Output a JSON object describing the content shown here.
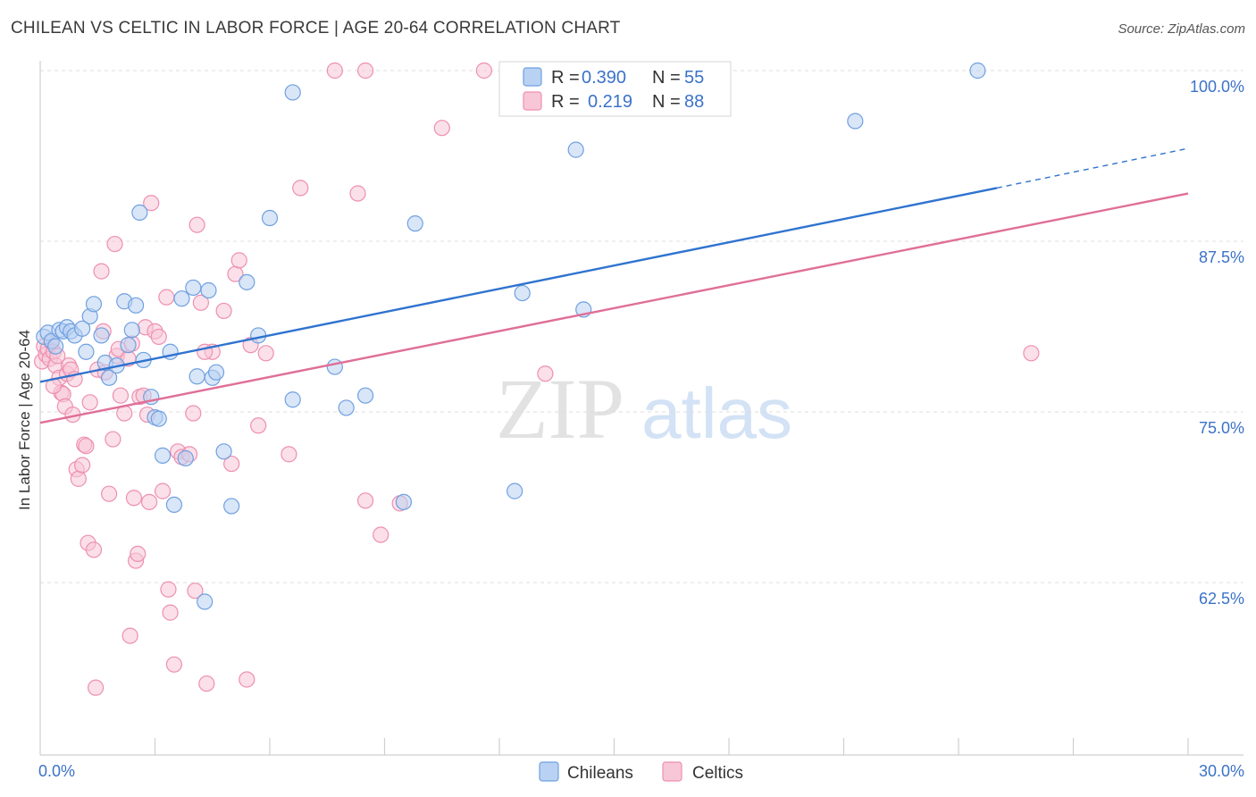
{
  "header": {
    "title": "CHILEAN VS CELTIC IN LABOR FORCE | AGE 20-64 CORRELATION CHART",
    "source": "Source: ZipAtlas.com"
  },
  "watermark": {
    "zip": "ZIP",
    "atlas": "atlas"
  },
  "colors": {
    "blue": "#6fa0e0",
    "blue_fill": "#b9d2f3",
    "blue_line": "#2f73cf",
    "pink": "#ee8fb0",
    "pink_fill": "#f7c7d7",
    "pink_line": "#e06f98",
    "tick": "#3b72c9"
  },
  "legend": {
    "r_label": "R =",
    "n_label": "N =",
    "rows": [
      {
        "r": "0.390",
        "n": "55"
      },
      {
        "r": "0.219",
        "n": "88"
      }
    ]
  },
  "chart_data": {
    "type": "scatter",
    "xlabel": "",
    "ylabel": "In Labor Force | Age 20-64",
    "xlim": [
      0,
      30
    ],
    "ylim": [
      51.5,
      101.5
    ],
    "x_tick_labels": [
      {
        "value": 0,
        "label": "0.0%"
      },
      {
        "value": 30,
        "label": "30.0%"
      }
    ],
    "y_tick_labels": [
      {
        "value": 100,
        "label": "100.0%"
      },
      {
        "value": 87.5,
        "label": "87.5%"
      },
      {
        "value": 75,
        "label": "75.0%"
      },
      {
        "value": 62.5,
        "label": "62.5%"
      }
    ],
    "x_minor_ticks": [
      3,
      6,
      9,
      12,
      15,
      18,
      21,
      24,
      27,
      30
    ],
    "series": [
      {
        "name": "Chileans",
        "r": 0.39,
        "n": 55,
        "trend": {
          "x0": 0,
          "y0": 77.2,
          "x1": 25,
          "y1": 91.4,
          "dash_to_x": 30,
          "dash_to_y": 94.3
        },
        "points": [
          [
            0.1,
            80.5
          ],
          [
            0.2,
            80.8
          ],
          [
            0.3,
            80.2
          ],
          [
            0.4,
            79.8
          ],
          [
            0.5,
            81.0
          ],
          [
            0.6,
            80.9
          ],
          [
            0.7,
            81.2
          ],
          [
            0.8,
            80.9
          ],
          [
            0.9,
            80.6
          ],
          [
            1.2,
            79.4
          ],
          [
            1.3,
            82.0
          ],
          [
            1.4,
            82.9
          ],
          [
            1.6,
            80.6
          ],
          [
            1.7,
            78.6
          ],
          [
            1.8,
            77.5
          ],
          [
            2.0,
            78.4
          ],
          [
            2.2,
            83.1
          ],
          [
            2.3,
            79.9
          ],
          [
            2.4,
            81.0
          ],
          [
            2.5,
            82.8
          ],
          [
            2.6,
            89.6
          ],
          [
            2.7,
            78.8
          ],
          [
            2.9,
            76.1
          ],
          [
            3.0,
            74.6
          ],
          [
            3.1,
            74.5
          ],
          [
            3.2,
            71.8
          ],
          [
            3.4,
            79.4
          ],
          [
            3.5,
            68.2
          ],
          [
            3.7,
            83.3
          ],
          [
            3.8,
            71.6
          ],
          [
            4.0,
            84.1
          ],
          [
            4.1,
            77.6
          ],
          [
            4.4,
            83.9
          ],
          [
            4.5,
            77.5
          ],
          [
            4.6,
            77.9
          ],
          [
            4.8,
            72.1
          ],
          [
            5.0,
            68.1
          ],
          [
            5.4,
            84.5
          ],
          [
            5.7,
            80.6
          ],
          [
            6.0,
            89.2
          ],
          [
            6.6,
            75.9
          ],
          [
            6.6,
            98.4
          ],
          [
            7.7,
            78.3
          ],
          [
            8.0,
            75.3
          ],
          [
            8.5,
            76.2
          ],
          [
            9.5,
            68.4
          ],
          [
            9.8,
            88.8
          ],
          [
            12.4,
            69.2
          ],
          [
            12.6,
            83.7
          ],
          [
            14.0,
            94.2
          ],
          [
            14.2,
            82.5
          ],
          [
            21.3,
            96.3
          ],
          [
            24.5,
            100.0
          ],
          [
            4.3,
            61.1
          ],
          [
            1.1,
            81.1
          ]
        ]
      },
      {
        "name": "Celtics",
        "r": 0.219,
        "n": 88,
        "trend": {
          "x0": 0,
          "y0": 74.2,
          "x1": 30,
          "y1": 91.0
        },
        "points": [
          [
            0.05,
            78.7
          ],
          [
            0.1,
            79.8
          ],
          [
            0.15,
            79.2
          ],
          [
            0.2,
            79.6
          ],
          [
            0.25,
            78.9
          ],
          [
            0.3,
            80.1
          ],
          [
            0.35,
            79.4
          ],
          [
            0.4,
            78.4
          ],
          [
            0.45,
            79.1
          ],
          [
            0.5,
            77.5
          ],
          [
            0.55,
            76.4
          ],
          [
            0.6,
            76.3
          ],
          [
            0.65,
            75.4
          ],
          [
            0.7,
            77.8
          ],
          [
            0.75,
            78.4
          ],
          [
            0.8,
            78.1
          ],
          [
            0.85,
            74.8
          ],
          [
            0.9,
            77.4
          ],
          [
            0.95,
            70.8
          ],
          [
            1.0,
            70.1
          ],
          [
            1.1,
            71.1
          ],
          [
            1.15,
            72.6
          ],
          [
            1.2,
            72.5
          ],
          [
            1.25,
            65.4
          ],
          [
            1.3,
            75.7
          ],
          [
            1.4,
            64.9
          ],
          [
            1.45,
            54.8
          ],
          [
            1.5,
            78.1
          ],
          [
            1.6,
            85.3
          ],
          [
            1.65,
            80.9
          ],
          [
            1.7,
            77.9
          ],
          [
            1.8,
            69.0
          ],
          [
            1.9,
            73.0
          ],
          [
            1.95,
            87.3
          ],
          [
            2.0,
            79.1
          ],
          [
            2.05,
            79.6
          ],
          [
            2.1,
            76.2
          ],
          [
            2.2,
            74.9
          ],
          [
            2.3,
            78.9
          ],
          [
            2.35,
            58.6
          ],
          [
            2.4,
            80.0
          ],
          [
            2.45,
            68.7
          ],
          [
            2.5,
            64.1
          ],
          [
            2.55,
            64.6
          ],
          [
            2.6,
            76.1
          ],
          [
            2.7,
            76.2
          ],
          [
            2.75,
            81.2
          ],
          [
            2.8,
            74.8
          ],
          [
            2.85,
            68.4
          ],
          [
            2.9,
            90.3
          ],
          [
            3.0,
            80.9
          ],
          [
            3.1,
            80.5
          ],
          [
            3.2,
            69.2
          ],
          [
            3.3,
            83.4
          ],
          [
            3.35,
            62.0
          ],
          [
            3.4,
            60.3
          ],
          [
            3.5,
            56.5
          ],
          [
            3.6,
            72.1
          ],
          [
            3.7,
            71.7
          ],
          [
            3.9,
            71.9
          ],
          [
            4.0,
            74.9
          ],
          [
            4.05,
            61.9
          ],
          [
            4.1,
            88.7
          ],
          [
            4.2,
            83.0
          ],
          [
            4.35,
            55.1
          ],
          [
            4.5,
            79.4
          ],
          [
            4.8,
            82.4
          ],
          [
            5.0,
            71.2
          ],
          [
            5.1,
            85.1
          ],
          [
            5.2,
            86.1
          ],
          [
            5.4,
            55.4
          ],
          [
            5.5,
            79.9
          ],
          [
            5.7,
            74.0
          ],
          [
            5.9,
            79.3
          ],
          [
            6.5,
            71.9
          ],
          [
            6.8,
            91.4
          ],
          [
            7.7,
            100.0
          ],
          [
            8.3,
            91.0
          ],
          [
            8.5,
            68.5
          ],
          [
            8.9,
            66.0
          ],
          [
            8.5,
            100.0
          ],
          [
            9.4,
            68.3
          ],
          [
            10.5,
            95.8
          ],
          [
            11.6,
            100.0
          ],
          [
            13.2,
            77.8
          ],
          [
            25.9,
            79.3
          ],
          [
            4.3,
            79.4
          ],
          [
            0.35,
            76.9
          ]
        ]
      }
    ]
  },
  "bottom_legend": {
    "series_a": "Chileans",
    "series_b": "Celtics"
  }
}
